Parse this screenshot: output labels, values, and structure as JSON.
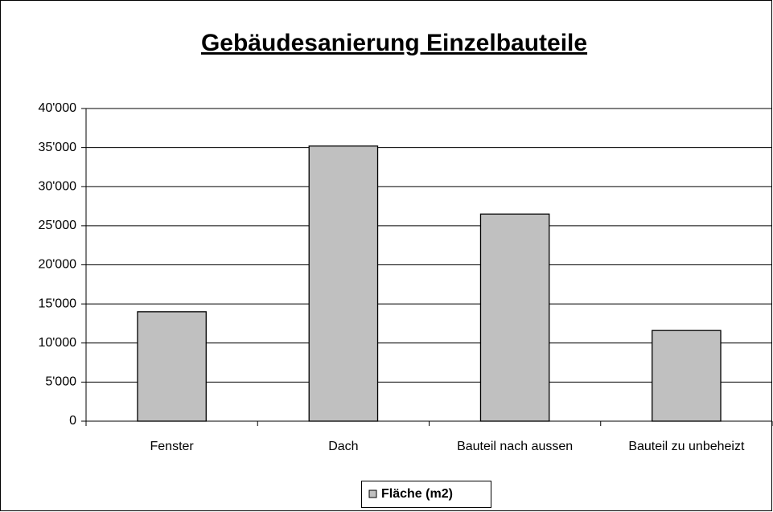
{
  "chart_data": {
    "type": "bar",
    "title": "Gebäudesanierung Einzelbauteile",
    "categories": [
      "Fenster",
      "Dach",
      "Bauteil nach aussen",
      "Bauteil zu unbeheizt"
    ],
    "series": [
      {
        "name": "Fläche (m2)",
        "color": "#c0c0c0",
        "values": [
          14000,
          35200,
          26500,
          11600
        ]
      }
    ],
    "ylim": [
      0,
      40000
    ],
    "yticks": [
      0,
      {
        "value": 5000,
        "label": "5'000"
      },
      {
        "value": 10000,
        "label": "10'000"
      },
      {
        "value": 15000,
        "label": "15'000"
      },
      {
        "value": 20000,
        "label": "20'000"
      },
      {
        "value": 25000,
        "label": "25'000"
      },
      {
        "value": 30000,
        "label": "30'000"
      },
      {
        "value": 35000,
        "label": "35'000"
      },
      {
        "value": 40000,
        "label": "40'000"
      }
    ],
    "grid": true,
    "legend": "bottom"
  }
}
